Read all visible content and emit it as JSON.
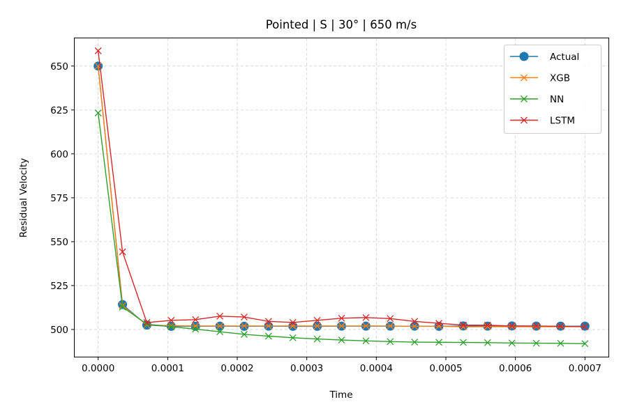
{
  "chart_data": {
    "type": "line",
    "title": "Pointed | S | 30° | 650 m/s",
    "xlabel": "Time",
    "ylabel": "Residual Velocity",
    "xlim": [
      -3.38e-05,
      0.0007338
    ],
    "ylim": [
      484.5,
      665.8
    ],
    "xticks": [
      0.0,
      0.0001,
      0.0002,
      0.0003,
      0.0004,
      0.0005,
      0.0006,
      0.0007
    ],
    "xtick_labels": [
      "0.0000",
      "0.0001",
      "0.0002",
      "0.0003",
      "0.0004",
      "0.0005",
      "0.0006",
      "0.0007"
    ],
    "yticks": [
      500,
      525,
      550,
      575,
      600,
      625,
      650
    ],
    "ytick_labels": [
      "500",
      "525",
      "550",
      "575",
      "600",
      "625",
      "650"
    ],
    "grid": true,
    "legend_position": "top-right",
    "x": [
      0.0,
      3.5e-05,
      7e-05,
      0.000105,
      0.00014,
      0.000175,
      0.00021,
      0.000245,
      0.00028,
      0.000315,
      0.00035,
      0.000385,
      0.00042,
      0.000455,
      0.00049,
      0.000525,
      0.00056,
      0.000595,
      0.00063,
      0.000665,
      0.0007
    ],
    "series": [
      {
        "name": "Actual",
        "color": "#1f77b4",
        "marker": "circle",
        "values": [
          650.0,
          514.2,
          502.5,
          501.8,
          501.8,
          501.9,
          501.8,
          501.9,
          501.8,
          501.8,
          501.9,
          501.9,
          501.9,
          501.9,
          501.8,
          502.0,
          501.9,
          502.0,
          501.9,
          501.9,
          501.9
        ]
      },
      {
        "name": "XGB",
        "color": "#ff7f0e",
        "marker": "x",
        "values": [
          650.0,
          513.6,
          502.6,
          502.1,
          502.0,
          502.0,
          502.0,
          502.0,
          502.0,
          502.0,
          502.0,
          502.0,
          502.0,
          501.8,
          501.9,
          501.5,
          501.6,
          501.6,
          501.6,
          501.6,
          501.6
        ]
      },
      {
        "name": "NN",
        "color": "#2ca02c",
        "marker": "x",
        "values": [
          623.3,
          512.8,
          503.0,
          501.6,
          500.2,
          498.7,
          497.2,
          496.2,
          495.3,
          494.6,
          494.0,
          493.5,
          493.1,
          492.8,
          492.7,
          492.6,
          492.5,
          492.3,
          492.2,
          492.1,
          491.9
        ]
      },
      {
        "name": "LSTM",
        "color": "#d62728",
        "marker": "x",
        "values": [
          658.7,
          544.2,
          503.9,
          505.2,
          505.6,
          507.6,
          507.1,
          504.6,
          504.0,
          505.2,
          506.4,
          506.8,
          506.2,
          504.6,
          503.5,
          502.5,
          502.4,
          502.0,
          502.0,
          501.8,
          501.6
        ]
      }
    ]
  }
}
